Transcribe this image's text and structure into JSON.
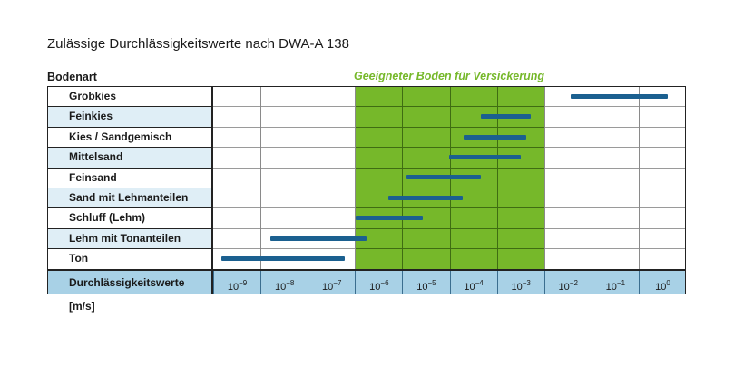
{
  "title": "Zulässige Durchlässigkeitswerte nach DWA-A 138",
  "column_header": "Bodenart",
  "highlight_label": "Geeigneter Boden für Versickerung",
  "footer_label": "Durchlässigkeitswerte [m/s]",
  "colors": {
    "highlight_green": "#76b82a",
    "bar_blue": "#1b6090",
    "alt_row": "#dfeef6",
    "footer_blue": "#a8d1e6"
  },
  "chart_data": {
    "type": "range-bar",
    "title": "Zulässige Durchlässigkeitswerte nach DWA-A 138",
    "xlabel": "Durchlässigkeitswerte [m/s]",
    "ylabel": "Bodenart",
    "x_scale": "log10",
    "x_ticks": [
      "10^-9",
      "10^-8",
      "10^-7",
      "10^-6",
      "10^-5",
      "10^-4",
      "10^-3",
      "10^-2",
      "10^-1",
      "10^0"
    ],
    "x_tick_exponents": [
      -9,
      -8,
      -7,
      -6,
      -5,
      -4,
      -3,
      -2,
      -1,
      0
    ],
    "highlight_band": {
      "label": "Geeigneter Boden für Versickerung",
      "from_exp": -6,
      "to_exp": -2,
      "color": "#76b82a"
    },
    "categories": [
      "Grobkies",
      "Feinkies",
      "Kies / Sandgemisch",
      "Mittelsand",
      "Feinsand",
      "Sand mit Lehmanteilen",
      "Schluff (Lehm)",
      "Lehm mit Tonanteilen",
      "Ton"
    ],
    "ranges_log10": [
      {
        "name": "Grobkies",
        "from": -1.44,
        "to": 0.62
      },
      {
        "name": "Feinkies",
        "from": -3.34,
        "to": -2.29
      },
      {
        "name": "Kies / Sandgemisch",
        "from": -3.7,
        "to": -2.38
      },
      {
        "name": "Mittelsand",
        "from": -4.01,
        "to": -2.5
      },
      {
        "name": "Feinsand",
        "from": -4.91,
        "to": -3.34
      },
      {
        "name": "Sand mit Lehmanteilen",
        "from": -5.3,
        "to": -3.72
      },
      {
        "name": "Schluff (Lehm)",
        "from": -5.99,
        "to": -4.57
      },
      {
        "name": "Lehm mit Tonanteilen",
        "from": -7.79,
        "to": -5.76
      },
      {
        "name": "Ton",
        "from": -8.83,
        "to": -6.22
      }
    ],
    "grid": true,
    "legend": "none"
  },
  "rows": [
    {
      "label": "Grobkies",
      "from": 7.56,
      "to": 9.62
    },
    {
      "label": "Feinkies",
      "from": 5.66,
      "to": 6.71
    },
    {
      "label": "Kies / Sandgemisch",
      "from": 5.3,
      "to": 6.62
    },
    {
      "label": "Mittelsand",
      "from": 4.99,
      "to": 6.5
    },
    {
      "label": "Feinsand",
      "from": 4.09,
      "to": 5.66
    },
    {
      "label": "Sand mit Lehmanteilen",
      "from": 3.7,
      "to": 5.28
    },
    {
      "label": "Schluff (Lehm)",
      "from": 3.01,
      "to": 4.43
    },
    {
      "label": "Lehm mit Tonanteilen",
      "from": 1.21,
      "to": 3.24
    },
    {
      "label": "Ton",
      "from": 0.17,
      "to": 2.78
    }
  ],
  "ticks": [
    {
      "base": "10",
      "exp": "−9"
    },
    {
      "base": "10",
      "exp": "−8"
    },
    {
      "base": "10",
      "exp": "−7"
    },
    {
      "base": "10",
      "exp": "−6"
    },
    {
      "base": "10",
      "exp": "−5"
    },
    {
      "base": "10",
      "exp": "−4"
    },
    {
      "base": "10",
      "exp": "−3"
    },
    {
      "base": "10",
      "exp": "−2"
    },
    {
      "base": "10",
      "exp": "−1"
    },
    {
      "base": "10",
      "exp": "0"
    }
  ]
}
